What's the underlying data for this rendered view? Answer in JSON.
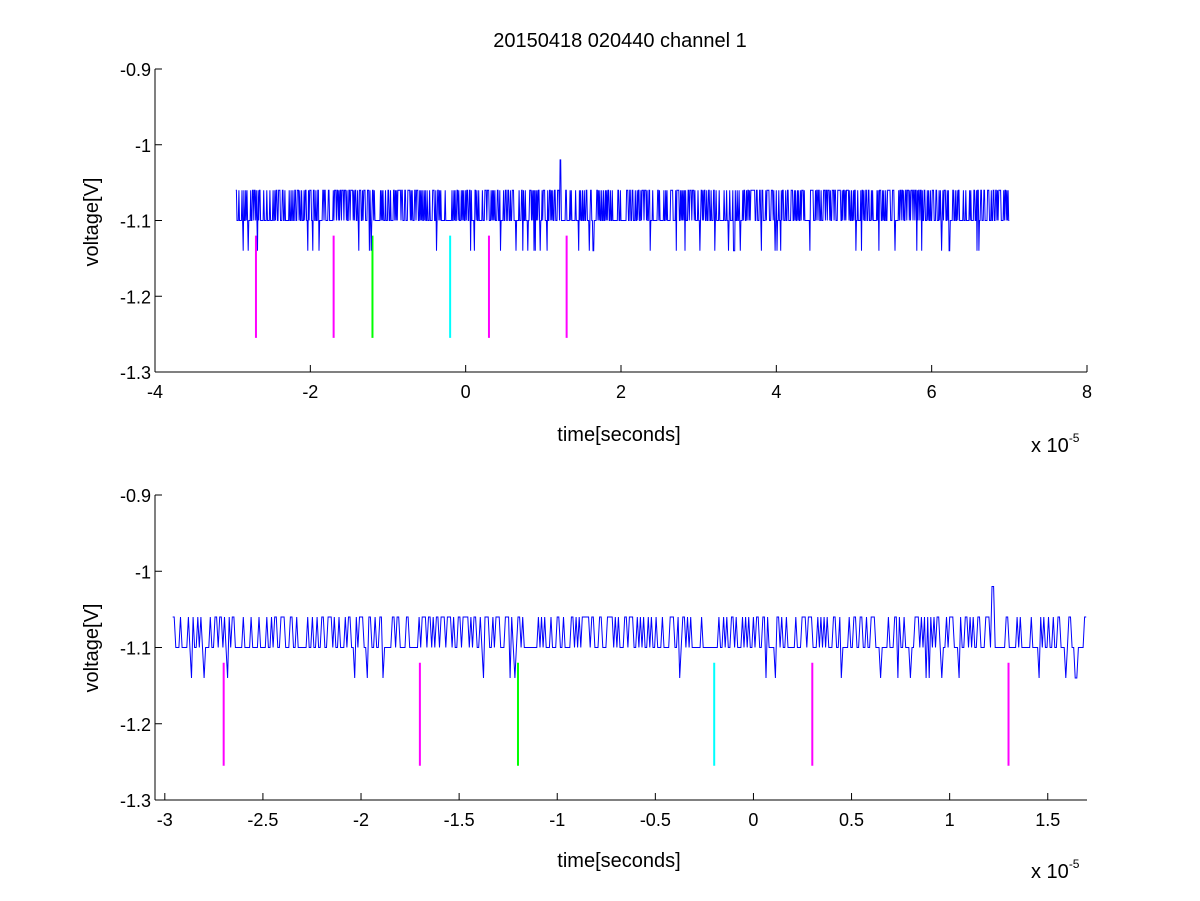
{
  "chart_data": [
    {
      "type": "line",
      "title": "20150418 020440 channel 1",
      "xlabel": "time[seconds]",
      "ylabel": "voltage[V]",
      "x_multiplier": "x 10",
      "x_multiplier_exp": "-5",
      "xlim": [
        -4,
        8
      ],
      "ylim": [
        -1.3,
        -0.9
      ],
      "x_ticks": [
        "-4",
        "-2",
        "0",
        "2",
        "4",
        "6",
        "8"
      ],
      "y_ticks": [
        "-0.9",
        "-1",
        "-1.1",
        "-1.2",
        "-1.3"
      ],
      "signal": {
        "color": "#0000ff",
        "x_range": [
          -2.96,
          7.0
        ],
        "baseline": -1.1,
        "high_level": -1.06,
        "low_level": -1.14,
        "peak": {
          "x": 1.22,
          "y": -1.02
        }
      },
      "markers": [
        {
          "x": -2.7,
          "y_top": -1.12,
          "y_bottom": -1.255,
          "color": "#ff00ff"
        },
        {
          "x": -1.7,
          "y_top": -1.12,
          "y_bottom": -1.255,
          "color": "#ff00ff"
        },
        {
          "x": -1.2,
          "y_top": -1.12,
          "y_bottom": -1.255,
          "color": "#00ff00"
        },
        {
          "x": -0.2,
          "y_top": -1.12,
          "y_bottom": -1.255,
          "color": "#00ffff"
        },
        {
          "x": 0.3,
          "y_top": -1.12,
          "y_bottom": -1.255,
          "color": "#ff00ff"
        },
        {
          "x": 1.3,
          "y_top": -1.12,
          "y_bottom": -1.255,
          "color": "#ff00ff"
        }
      ]
    },
    {
      "type": "line",
      "xlabel": "time[seconds]",
      "ylabel": "voltage[V]",
      "x_multiplier": "x 10",
      "x_multiplier_exp": "-5",
      "xlim": [
        -3.05,
        1.7
      ],
      "ylim": [
        -1.3,
        -0.9
      ],
      "x_ticks": [
        "-3",
        "-2.5",
        "-2",
        "-1.5",
        "-1",
        "-0.5",
        "0",
        "0.5",
        "1",
        "1.5"
      ],
      "y_ticks": [
        "-0.9",
        "-1",
        "-1.1",
        "-1.2",
        "-1.3"
      ],
      "signal": {
        "color": "#0000ff",
        "x_range": [
          -2.96,
          1.7
        ],
        "baseline": -1.1,
        "high_level": -1.06,
        "low_level": -1.14,
        "peak": {
          "x": 1.22,
          "y": -1.02
        }
      },
      "markers": [
        {
          "x": -2.7,
          "y_top": -1.12,
          "y_bottom": -1.255,
          "color": "#ff00ff"
        },
        {
          "x": -1.7,
          "y_top": -1.12,
          "y_bottom": -1.255,
          "color": "#ff00ff"
        },
        {
          "x": -1.2,
          "y_top": -1.12,
          "y_bottom": -1.255,
          "color": "#00ff00"
        },
        {
          "x": -0.2,
          "y_top": -1.12,
          "y_bottom": -1.255,
          "color": "#00ffff"
        },
        {
          "x": 0.3,
          "y_top": -1.12,
          "y_bottom": -1.255,
          "color": "#ff00ff"
        },
        {
          "x": 1.3,
          "y_top": -1.12,
          "y_bottom": -1.255,
          "color": "#ff00ff"
        }
      ]
    }
  ]
}
